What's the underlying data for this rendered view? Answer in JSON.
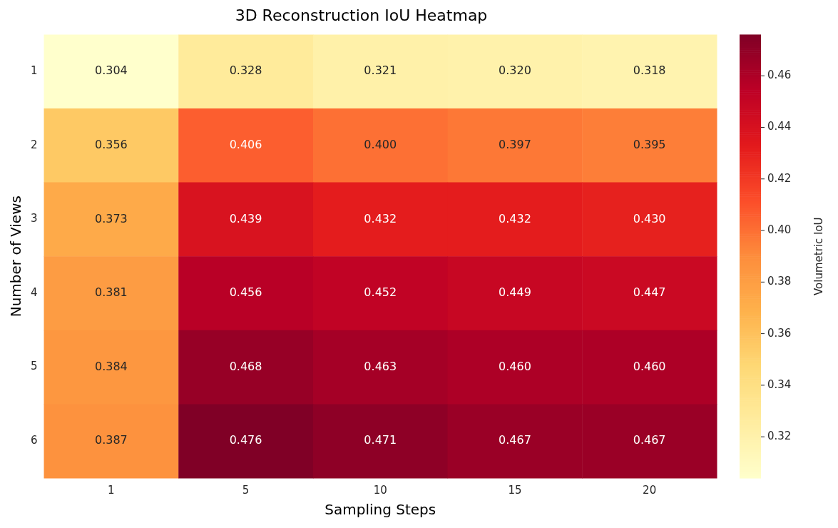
{
  "chart_data": {
    "type": "heatmap",
    "title": "3D Reconstruction IoU Heatmap",
    "xlabel": "Sampling Steps",
    "ylabel": "Number of Views",
    "clabel": "Volumetric IoU",
    "categories": [
      "1",
      "5",
      "10",
      "15",
      "20"
    ],
    "y_categories": [
      "1",
      "2",
      "3",
      "4",
      "5",
      "6"
    ],
    "cells": [
      [
        0.304,
        0.328,
        0.321,
        0.32,
        0.318
      ],
      [
        0.356,
        0.406,
        0.4,
        0.397,
        0.395
      ],
      [
        0.373,
        0.439,
        0.432,
        0.432,
        0.43
      ],
      [
        0.381,
        0.456,
        0.452,
        0.449,
        0.447
      ],
      [
        0.384,
        0.468,
        0.463,
        0.46,
        0.46
      ],
      [
        0.387,
        0.476,
        0.471,
        0.467,
        0.467
      ]
    ],
    "cell_labels": [
      [
        "0.304",
        "0.328",
        "0.321",
        "0.320",
        "0.318"
      ],
      [
        "0.356",
        "0.406",
        "0.400",
        "0.397",
        "0.395"
      ],
      [
        "0.373",
        "0.439",
        "0.432",
        "0.432",
        "0.430"
      ],
      [
        "0.381",
        "0.456",
        "0.452",
        "0.449",
        "0.447"
      ],
      [
        "0.384",
        "0.468",
        "0.463",
        "0.460",
        "0.460"
      ],
      [
        "0.387",
        "0.476",
        "0.471",
        "0.467",
        "0.467"
      ]
    ],
    "clim": [
      0.304,
      0.476
    ],
    "cticks": [
      {
        "value": 0.32,
        "label": "0.32"
      },
      {
        "value": 0.34,
        "label": "0.34"
      },
      {
        "value": 0.36,
        "label": "0.36"
      },
      {
        "value": 0.38,
        "label": "0.38"
      },
      {
        "value": 0.4,
        "label": "0.40"
      },
      {
        "value": 0.42,
        "label": "0.42"
      },
      {
        "value": 0.44,
        "label": "0.44"
      },
      {
        "value": 0.46,
        "label": "0.46"
      }
    ]
  }
}
